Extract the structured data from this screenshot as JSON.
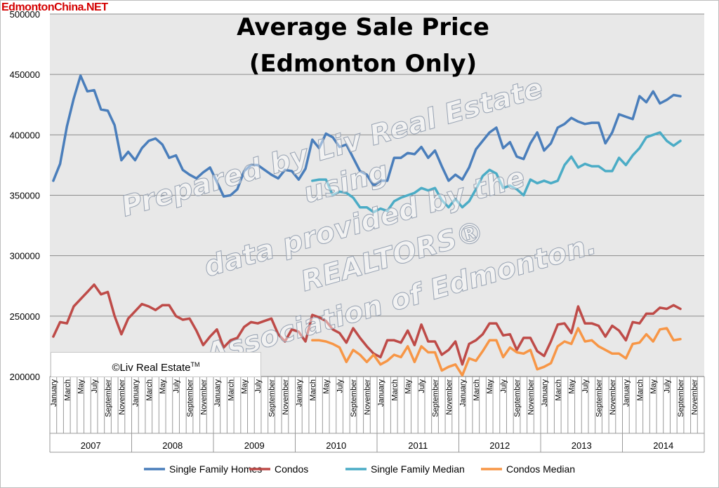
{
  "site_label": "EdmontonChina.NET",
  "copyright": {
    "text": "©Liv Real Estate",
    "mark": "TM"
  },
  "watermark_lines": [
    "Prepared by Liv Real Estate",
    "using",
    "data provided by the",
    "REALTORS®",
    "Association of Edmonton."
  ],
  "chart_data": {
    "type": "line",
    "title": "Average Sale Price",
    "subtitle": "(Edmonton Only)",
    "xlabel": "",
    "ylabel": "",
    "ylim": [
      200000,
      500000
    ],
    "yticks": [
      200000,
      250000,
      300000,
      350000,
      400000,
      450000,
      500000
    ],
    "grid": true,
    "legend": "bottom",
    "years": [
      "2007",
      "2008",
      "2009",
      "2010",
      "2011",
      "2012",
      "2013",
      "2014"
    ],
    "month_labels": [
      "January",
      "March",
      "May",
      "July",
      "September",
      "November"
    ],
    "categories_note": "monthly, January 2007 to September 2014",
    "series": [
      {
        "name": "Single Family Homes",
        "color": "#4a7ebb",
        "start_index": 0,
        "values": [
          362000,
          376000,
          407000,
          430000,
          449000,
          436000,
          437000,
          421000,
          420000,
          408000,
          379000,
          386000,
          379000,
          389000,
          395000,
          397000,
          392000,
          381000,
          383000,
          371000,
          367000,
          364000,
          369000,
          373000,
          361000,
          349000,
          350000,
          355000,
          370000,
          375000,
          375000,
          371000,
          367000,
          364000,
          371000,
          370000,
          363000,
          372000,
          396000,
          389000,
          401000,
          398000,
          390000,
          392000,
          381000,
          370000,
          367000,
          358000,
          362000,
          362000,
          381000,
          381000,
          385000,
          384000,
          390000,
          381000,
          387000,
          374000,
          362000,
          367000,
          363000,
          373000,
          388000,
          395000,
          402000,
          406000,
          389000,
          394000,
          382000,
          380000,
          393000,
          402000,
          387000,
          393000,
          406000,
          409000,
          414000,
          411000,
          409000,
          410000,
          410000,
          393000,
          402000,
          417000,
          415000,
          413000,
          432000,
          427000,
          436000,
          426000,
          429000,
          433000,
          432000
        ]
      },
      {
        "name": "Condos",
        "color": "#be4b48",
        "start_index": 0,
        "values": [
          233000,
          245000,
          244000,
          258000,
          264000,
          270000,
          276000,
          268000,
          270000,
          250000,
          235000,
          248000,
          254000,
          260000,
          258000,
          255000,
          259000,
          259000,
          250000,
          247000,
          248000,
          238000,
          226000,
          233000,
          239000,
          224000,
          230000,
          232000,
          241000,
          245000,
          244000,
          246000,
          248000,
          235000,
          229000,
          239000,
          237000,
          229000,
          251000,
          249000,
          246000,
          239000,
          236000,
          228000,
          240000,
          232000,
          225000,
          219000,
          216000,
          230000,
          230000,
          228000,
          238000,
          226000,
          243000,
          229000,
          229000,
          218000,
          222000,
          229000,
          210000,
          227000,
          230000,
          235000,
          244000,
          244000,
          234000,
          235000,
          222000,
          232000,
          232000,
          221000,
          217000,
          229000,
          243000,
          244000,
          236000,
          258000,
          244000,
          244000,
          242000,
          233000,
          242000,
          238000,
          230000,
          245000,
          244000,
          252000,
          252000,
          257000,
          256000,
          259000,
          256000
        ]
      },
      {
        "name": "Single Family Median",
        "color": "#4bacc6",
        "start_index": 38,
        "values": [
          362000,
          363000,
          363000,
          350000,
          353000,
          352000,
          348000,
          340000,
          340000,
          336000,
          339000,
          337000,
          345000,
          348000,
          350000,
          352000,
          356000,
          354000,
          356000,
          346000,
          340000,
          347000,
          340000,
          345000,
          355000,
          366000,
          371000,
          368000,
          356000,
          358000,
          355000,
          350000,
          363000,
          360000,
          362000,
          360000,
          362000,
          375000,
          382000,
          373000,
          376000,
          374000,
          374000,
          370000,
          370000,
          381000,
          375000,
          383000,
          389000,
          398000,
          400000,
          402000,
          395000,
          391000,
          395000
        ]
      },
      {
        "name": "Condos Median",
        "color": "#f79646",
        "start_index": 38,
        "values": [
          230000,
          230000,
          229000,
          227000,
          224000,
          212000,
          222000,
          218000,
          212000,
          218000,
          210000,
          213000,
          218000,
          216000,
          225000,
          212000,
          225000,
          220000,
          220000,
          205000,
          208000,
          210000,
          201000,
          215000,
          213000,
          221000,
          230000,
          230000,
          216000,
          224000,
          220000,
          219000,
          222000,
          206000,
          208000,
          211000,
          225000,
          229000,
          227000,
          240000,
          229000,
          230000,
          225000,
          222000,
          219000,
          219000,
          215000,
          227000,
          228000,
          235000,
          229000,
          239000,
          240000,
          230000,
          231000
        ]
      }
    ]
  }
}
